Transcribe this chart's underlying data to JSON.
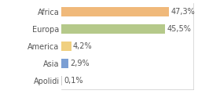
{
  "categories": [
    "Africa",
    "Europa",
    "America",
    "Asia",
    "Apolidi"
  ],
  "values": [
    47.3,
    45.5,
    4.2,
    2.9,
    0.1
  ],
  "labels": [
    "47,3%",
    "45,5%",
    "4,2%",
    "2,9%",
    "0,1%"
  ],
  "bar_colors": [
    "#f0b97a",
    "#b5c98a",
    "#f0d080",
    "#7b9fd4",
    "#cccccc"
  ],
  "background_color": "#ffffff",
  "xlim": [
    0,
    58
  ],
  "label_fontsize": 7.0,
  "tick_fontsize": 7.0,
  "bar_height": 0.55,
  "right_spine_color": "#cccccc",
  "bottom_spine_color": "#cccccc"
}
